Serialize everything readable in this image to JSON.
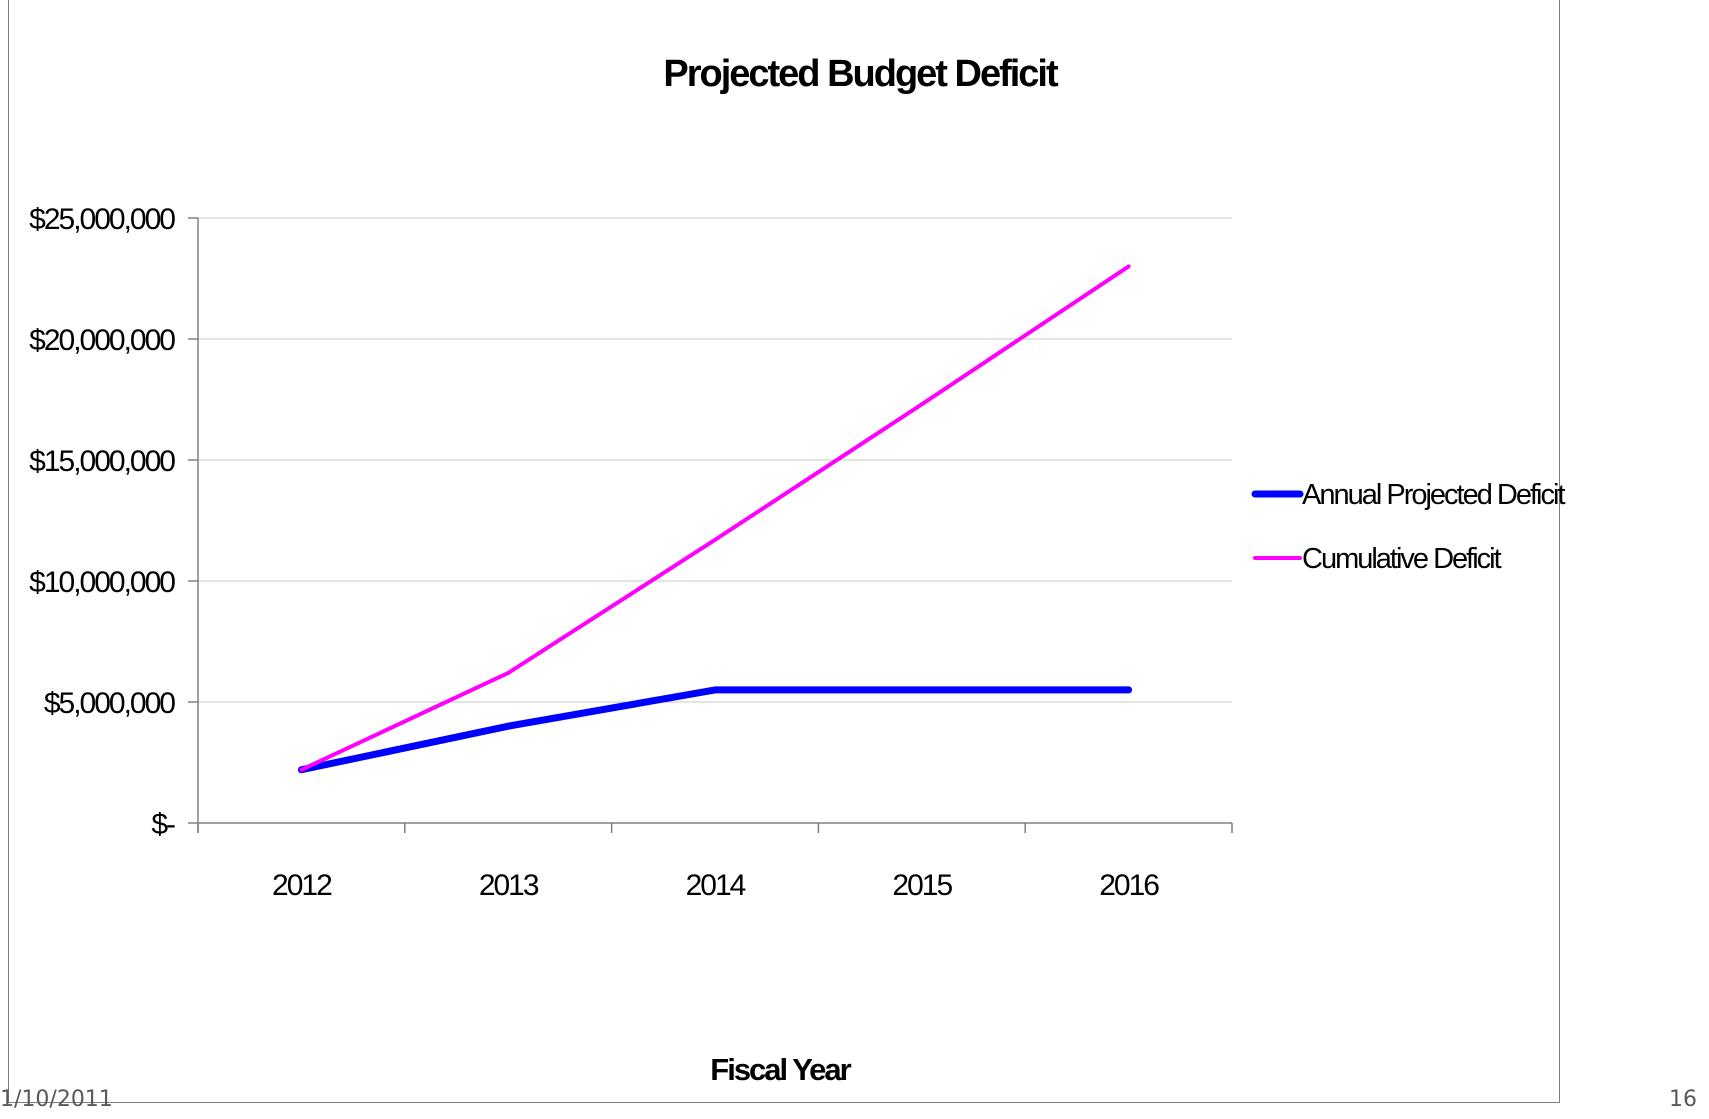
{
  "footer": {
    "date": "1/10/2011",
    "page_number": "16"
  },
  "chart_data": {
    "type": "line",
    "title": "Projected Budget Deficit",
    "xlabel": "Fiscal Year",
    "ylabel": "",
    "categories": [
      "2012",
      "2013",
      "2014",
      "2015",
      "2016"
    ],
    "ylim": [
      0,
      25000000
    ],
    "yticks": [
      0,
      5000000,
      10000000,
      15000000,
      20000000,
      25000000
    ],
    "ytick_labels": [
      "$-",
      "$5,000,000",
      "$10,000,000",
      "$15,000,000",
      "$20,000,000",
      "$25,000,000"
    ],
    "grid": true,
    "legend_position": "right",
    "series": [
      {
        "name": "Annual Projected Deficit",
        "color": "#0000ff",
        "values": [
          2200000,
          4000000,
          5500000,
          5500000,
          5500000
        ]
      },
      {
        "name": "Cumulative Deficit",
        "color": "#ff00ff",
        "values": [
          2200000,
          6200000,
          11700000,
          17300000,
          23000000
        ]
      }
    ]
  }
}
